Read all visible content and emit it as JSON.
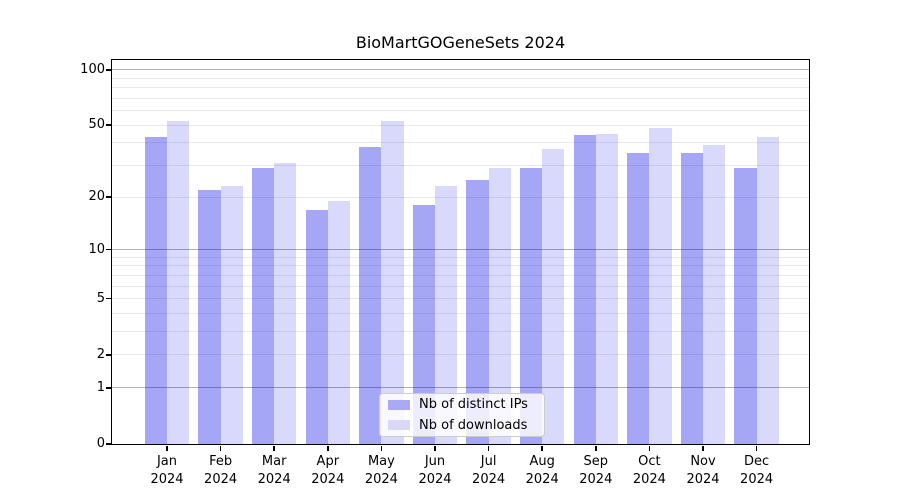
{
  "chart_data": {
    "type": "bar",
    "title": "BioMartGOGeneSets 2024",
    "categories": [
      "Jan",
      "Feb",
      "Mar",
      "Apr",
      "May",
      "Jun",
      "Jul",
      "Aug",
      "Sep",
      "Oct",
      "Nov",
      "Dec"
    ],
    "category_sublabel": "2024",
    "series": [
      {
        "name": "Nb of distinct IPs",
        "color": "rgba(0,0,230,0.35)",
        "legend_color": "#a9a9f7",
        "values": [
          43,
          22,
          29,
          17,
          38,
          18,
          25,
          29,
          44,
          35,
          35,
          29
        ]
      },
      {
        "name": "Nb of downloads",
        "color": "rgba(0,0,230,0.15)",
        "legend_color": "#d9d9f7",
        "values": [
          53,
          23,
          31,
          19,
          53,
          23,
          29,
          37,
          45,
          48,
          39,
          43
        ]
      }
    ],
    "yscale": "log1p",
    "ylim": [
      0,
      113
    ],
    "yticks": [
      0,
      1,
      2,
      5,
      10,
      20,
      50,
      100
    ],
    "major_gridlines": [
      1,
      10,
      100
    ],
    "minor_gridlines": [
      2,
      3,
      4,
      5,
      6,
      7,
      8,
      9,
      20,
      30,
      40,
      50,
      60,
      70,
      80,
      90
    ],
    "legend_position": "lower center",
    "grid_major_color": "#b0b0b0",
    "grid_minor_color": "#e9e9ef",
    "xlabel": "",
    "ylabel": ""
  }
}
